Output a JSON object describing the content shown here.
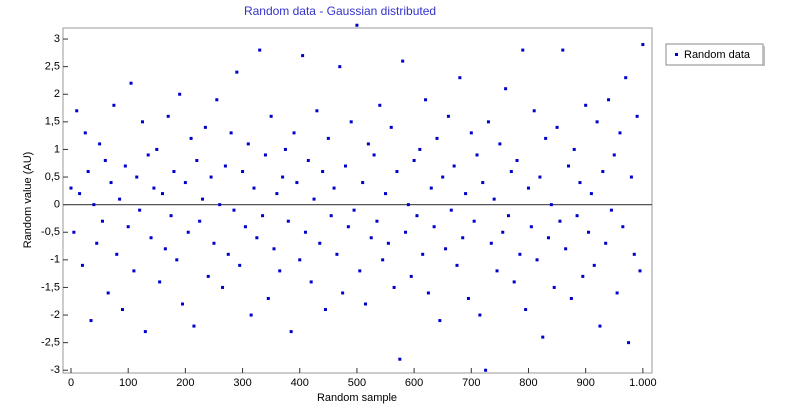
{
  "chart_data": {
    "type": "scatter",
    "title": "Random data - Gaussian distributed",
    "x_label": "Random sample",
    "y_label": "Random value (AU)",
    "legend": "top-right-outside",
    "xlim": [
      -14,
      1016
    ],
    "ylim": [
      -3.05,
      3.2
    ],
    "xticks": [
      0,
      100,
      200,
      300,
      400,
      500,
      600,
      700,
      800,
      900,
      {
        "value": 1000,
        "label": "1.000"
      }
    ],
    "yticks": [
      -3,
      {
        "value": -2.5,
        "label": "-2,5"
      },
      -2,
      {
        "value": -1.5,
        "label": "-1,5"
      },
      -1,
      {
        "value": -0.5,
        "label": "-0,5"
      },
      0,
      {
        "value": 0.5,
        "label": "0,5"
      },
      1,
      {
        "value": 1.5,
        "label": "1,5"
      },
      2,
      {
        "value": 2.5,
        "label": "2,5"
      },
      3
    ],
    "x": [
      0,
      5,
      10,
      15,
      20,
      25,
      30,
      35,
      40,
      45,
      50,
      55,
      60,
      65,
      70,
      75,
      80,
      85,
      90,
      95,
      100,
      105,
      110,
      115,
      120,
      125,
      130,
      135,
      140,
      145,
      150,
      155,
      160,
      165,
      170,
      175,
      180,
      185,
      190,
      195,
      200,
      205,
      210,
      215,
      220,
      225,
      230,
      235,
      240,
      245,
      250,
      255,
      260,
      265,
      270,
      275,
      280,
      285,
      290,
      295,
      300,
      305,
      310,
      315,
      320,
      325,
      330,
      335,
      340,
      345,
      350,
      355,
      360,
      365,
      370,
      375,
      380,
      385,
      390,
      395,
      400,
      405,
      410,
      415,
      420,
      425,
      430,
      435,
      440,
      445,
      450,
      455,
      460,
      465,
      470,
      475,
      480,
      485,
      490,
      495,
      500,
      505,
      510,
      515,
      520,
      525,
      530,
      535,
      540,
      545,
      550,
      555,
      560,
      565,
      570,
      575,
      580,
      585,
      590,
      595,
      600,
      605,
      610,
      615,
      620,
      625,
      630,
      635,
      640,
      645,
      650,
      655,
      660,
      665,
      670,
      675,
      680,
      685,
      690,
      695,
      700,
      705,
      710,
      715,
      720,
      725,
      730,
      735,
      740,
      745,
      750,
      755,
      760,
      765,
      770,
      775,
      780,
      785,
      790,
      795,
      800,
      805,
      810,
      815,
      820,
      825,
      830,
      835,
      840,
      845,
      850,
      855,
      860,
      865,
      870,
      875,
      880,
      885,
      890,
      895,
      900,
      905,
      910,
      915,
      920,
      925,
      930,
      935,
      940,
      945,
      950,
      955,
      960,
      965,
      970,
      975,
      980,
      985,
      990,
      995,
      1000
    ],
    "series": [
      {
        "name": "Random data",
        "color": "#0000cc",
        "values": [
          0.3,
          -0.5,
          1.7,
          0.2,
          -1.1,
          1.3,
          0.6,
          -2.1,
          0.0,
          -0.7,
          1.1,
          -0.3,
          0.8,
          -1.6,
          0.4,
          1.8,
          -0.9,
          0.1,
          -1.9,
          0.7,
          -0.4,
          2.2,
          -1.2,
          0.5,
          -0.1,
          1.5,
          -2.3,
          0.9,
          -0.6,
          0.3,
          1.0,
          -1.4,
          0.2,
          -0.8,
          1.6,
          -0.2,
          0.6,
          -1.0,
          2.0,
          -1.8,
          0.4,
          -0.5,
          1.2,
          -2.2,
          0.8,
          -0.3,
          0.1,
          1.4,
          -1.3,
          0.5,
          -0.7,
          1.9,
          0.0,
          -1.5,
          0.7,
          -0.9,
          1.3,
          -0.1,
          2.4,
          -1.1,
          0.6,
          -0.4,
          1.1,
          -2.0,
          0.3,
          -0.6,
          2.8,
          -0.2,
          0.9,
          -1.7,
          1.6,
          -0.8,
          0.2,
          -1.2,
          0.5,
          1.0,
          -0.3,
          -2.3,
          1.3,
          0.4,
          -1.0,
          2.7,
          -0.5,
          0.8,
          -1.4,
          0.1,
          1.7,
          -0.7,
          0.6,
          -1.9,
          1.2,
          -0.2,
          0.3,
          -0.9,
          2.5,
          -1.6,
          0.7,
          -0.4,
          1.5,
          -0.1,
          3.25,
          -1.2,
          0.4,
          -1.8,
          1.1,
          -0.6,
          0.9,
          -0.3,
          1.8,
          -1.0,
          0.2,
          -0.7,
          1.4,
          -1.5,
          0.6,
          -2.8,
          2.6,
          -0.5,
          0.0,
          -1.3,
          0.8,
          -0.2,
          1.0,
          -0.9,
          1.9,
          -1.6,
          0.3,
          -0.4,
          1.2,
          -2.1,
          0.5,
          -0.8,
          1.6,
          -0.1,
          0.7,
          -1.1,
          2.3,
          -0.6,
          0.2,
          -1.7,
          1.3,
          -0.3,
          0.9,
          -2.0,
          0.4,
          -3.0,
          1.5,
          -0.7,
          0.1,
          -1.2,
          1.1,
          -0.5,
          2.1,
          -0.2,
          0.6,
          -1.4,
          0.8,
          -0.9,
          2.8,
          -1.9,
          0.3,
          -0.4,
          1.7,
          -1.0,
          0.5,
          -2.4,
          1.2,
          -0.6,
          0.0,
          -1.5,
          1.4,
          -0.3,
          2.8,
          -0.8,
          0.7,
          -1.7,
          1.0,
          -0.2,
          0.4,
          -1.3,
          1.8,
          -0.5,
          0.2,
          -1.1,
          1.5,
          -2.2,
          0.6,
          -0.7,
          1.9,
          -0.1,
          0.9,
          -1.6,
          1.3,
          -0.4,
          2.3,
          -2.5,
          0.5,
          -0.9,
          1.6,
          -1.2,
          2.9
        ]
      }
    ]
  }
}
